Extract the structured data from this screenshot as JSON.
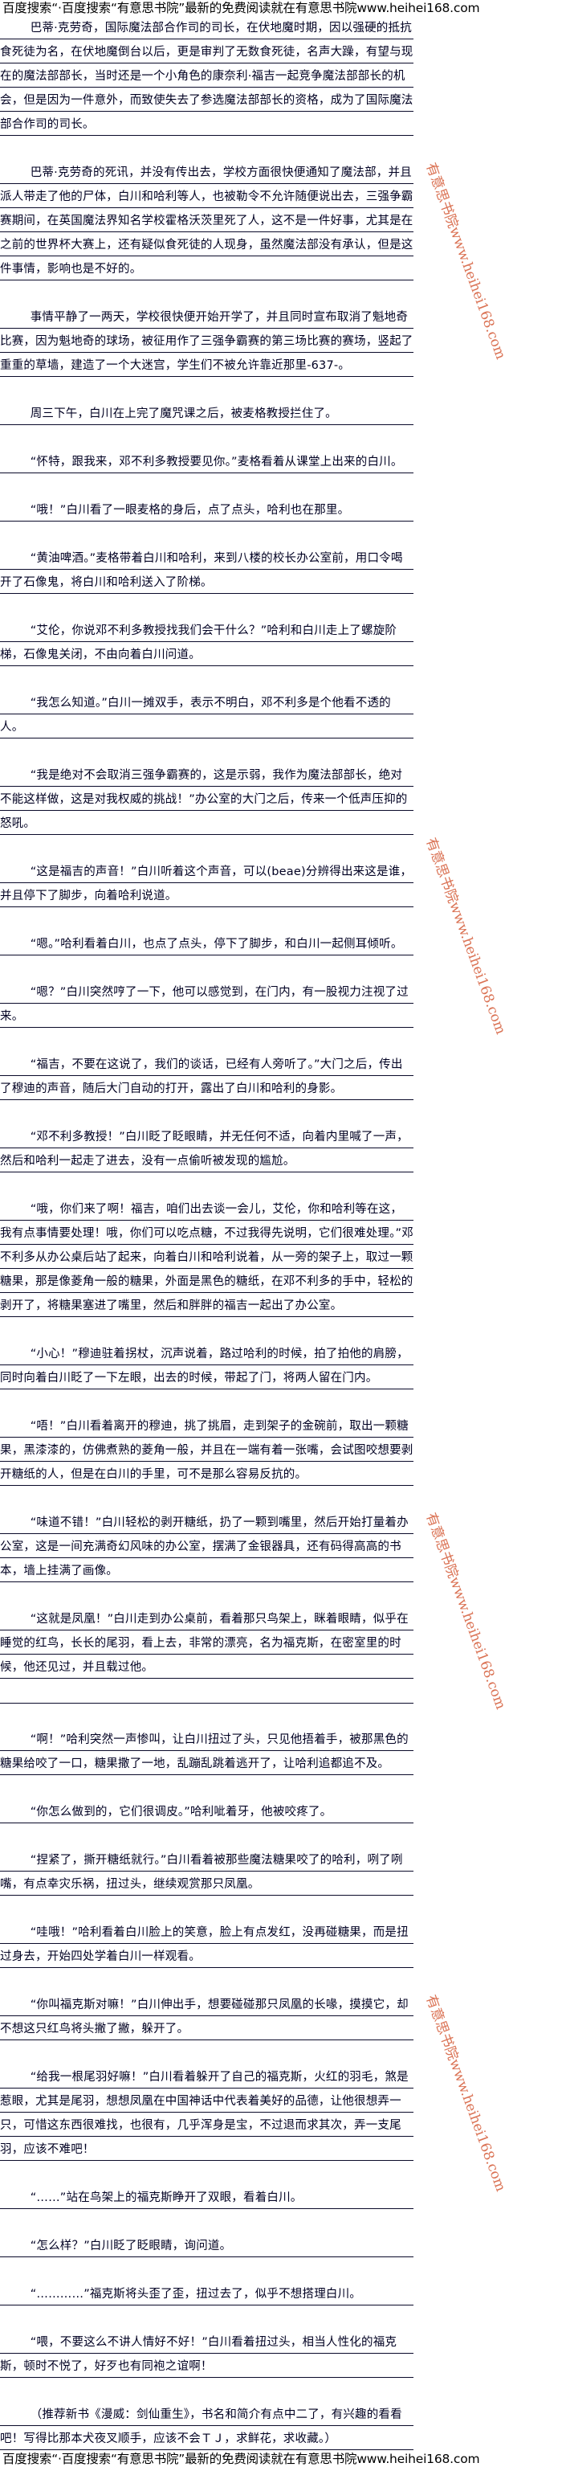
{
  "banner": {
    "text": "百度搜索“·百度搜索“有意思书院”最新的免费阅读就在有意思书院www.heihei168.com"
  },
  "watermark": {
    "text": "有意思书院www.heihei168.com",
    "color": "#d2502a"
  },
  "paragraphs": [
    "巴蒂·克劳奇，国际魔法部合作司的司长，在伏地魔时期，因以强硬的抵抗食死徒为名，在伏地魔倒台以后，更是审判了无数食死徒，名声大躁，有望与现在的魔法部部长，当时还是一个小角色的康奈利·福吉一起竞争魔法部部长的机会，但是因为一件意外，而致使失去了参选魔法部部长的资格，成为了国际魔法部合作司的司长。",
    "巴蒂·克劳奇的死讯，并没有传出去，学校方面很快便通知了魔法部，并且派人带走了他的尸体，白川和哈利等人，也被勒令不允许随便说出去，三强争霸赛期间，在英国魔法界知名学校霍格沃茨里死了人，这不是一件好事，尤其是在之前的世界杯大赛上，还有疑似食死徒的人现身，虽然魔法部没有承认，但是这件事情，影响也是不好的。",
    "事情平静了一两天，学校很快便开始开学了，并且同时宣布取消了魁地奇比赛，因为魁地奇的球场，被征用作了三强争霸赛的第三场比赛的赛场，竖起了重重的草墙，建造了一个大迷宫，学生们不被允许靠近那里-637-。",
    "周三下午，白川在上完了魔咒课之后，被麦格教授拦住了。",
    "“怀特，跟我来，邓不利多教授要见你。”麦格看着从课堂上出来的白川。",
    "“哦！”白川看了一眼麦格的身后，点了点头，哈利也在那里。",
    "“黄油啤酒。”麦格带着白川和哈利，来到八楼的校长办公室前，用口令喝开了石像鬼，将白川和哈利送入了阶梯。",
    "“艾伦，你说邓不利多教授找我们会干什么？”哈利和白川走上了螺旋阶梯，石像鬼关闭，不由向着白川问道。",
    "“我怎么知道。”白川一摊双手，表示不明白，邓不利多是个他看不透的人。",
    "“我是绝对不会取消三强争霸赛的，这是示弱，我作为魔法部部长，绝对不能这样做，这是对我权威的挑战！”办公室的大门之后，传来一个低声压抑的怒吼。",
    "“这是福吉的声音！”白川听着这个声音，可以(beae)分辨得出来这是谁，并且停下了脚步，向着哈利说道。",
    "“嗯。”哈利看着白川，也点了点头，停下了脚步，和白川一起侧耳倾听。",
    "“嗯？”白川突然哼了一下，他可以感觉到，在门内，有一股视力注视了过来。",
    "“福吉，不要在这说了，我们的谈话，已经有人旁听了。”大门之后，传出了穆迪的声音，随后大门自动的打开，露出了白川和哈利的身影。",
    "“邓不利多教授！”白川眨了眨眼睛，并无任何不适，向着内里喊了一声，然后和哈利一起走了进去，没有一点偷听被发现的尴尬。",
    "“哦，你们来了啊！福吉，咱们出去谈一会儿，艾伦，你和哈利等在这，我有点事情要处理！哦，你们可以吃点糖，不过我得先说明，它们很难处理。”邓不利多从办公桌后站了起来，向着白川和哈利说着，从一旁的架子上，取过一颗糖果，那是像菱角一般的糖果，外面是黑色的糖纸，在邓不利多的手中，轻松的剥开了，将糖果塞进了嘴里，然后和胖胖的福吉一起出了办公室。",
    "“小心！”穆迪驻着拐杖，沉声说着，路过哈利的时候，拍了拍他的肩膀，同时向着白川眨了一下左眼，出去的时候，带起了门，将两人留在门内。",
    "“唔！”白川看着离开的穆迪，挑了挑眉，走到架子的金碗前，取出一颗糖果，黑漆漆的，仿佛煮熟的菱角一般，并且在一端有着一张嘴，会试图咬想要剥开糖纸的人，但是在白川的手里，可不是那么容易反抗的。",
    "“味道不错！”白川轻松的剥开糖纸，扔了一颗到嘴里，然后开始打量着办公室，这是一间充满奇幻风味的办公室，摆满了金银器具，还有码得高高的书本，墙上挂满了画像。",
    "“这就是凤凰！”白川走到办公桌前，看着那只鸟架上，眯着眼睛，似乎在睡觉的红鸟，长长的尾羽，看上去，非常的漂亮，名为福克斯，在密室里的时候，他还见过，并且载过他。",
    "“啊！”哈利突然一声惨叫，让白川扭过了头，只见他捂着手，被那黑色的糖果给咬了一口，糖果撒了一地，乱蹦乱跳着逃开了，让哈利追都追不及。",
    "“你怎么做到的，它们很调皮。”哈利呲着牙，他被咬疼了。",
    "“捏紧了，撕开糖纸就行。”白川看着被那些魔法糖果咬了的哈利，咧了咧嘴，有点幸灾乐祸，扭过头，继续观赏那只凤凰。",
    "“哇哦！”哈利看着白川脸上的笑意，脸上有点发红，没再碰糖果，而是扭过身去，开始四处学着白川一样观看。",
    "“你叫福克斯对嘛！”白川伸出手，想要碰碰那只凤凰的长喙，摸摸它，却不想这只红鸟将头撇了撇，躲开了。",
    "“给我一根尾羽好嘛！”白川看着躲开了自己的福克斯，火红的羽毛，煞是惹眼，尤其是尾羽，想想凤凰在中国神话中代表着美好的品德，让他很想弄一只，可惜这东西很难找，也很有，几乎浑身是宝，不过退而求其次，弄一支尾羽，应该不难吧！",
    "“……”站在鸟架上的福克斯睁开了双眼，看着白川。",
    "“怎么样？”白川眨了眨眼睛，询问道。",
    "“…………”福克斯将头歪了歪，扭过去了，似乎不想搭理白川。",
    "“喂，不要这么不讲人情好不好！”白川看着扭过头，相当人性化的福克斯，顿时不悦了，好歹也有同袍之谊啊！",
    "（推荐新书《漫威：剑仙重生》，书名和简介有点中二了，有兴趣的看看吧！写得比那本犬夜叉顺手，应该不会ＴＪ，求鲜花，求收藏。）"
  ]
}
